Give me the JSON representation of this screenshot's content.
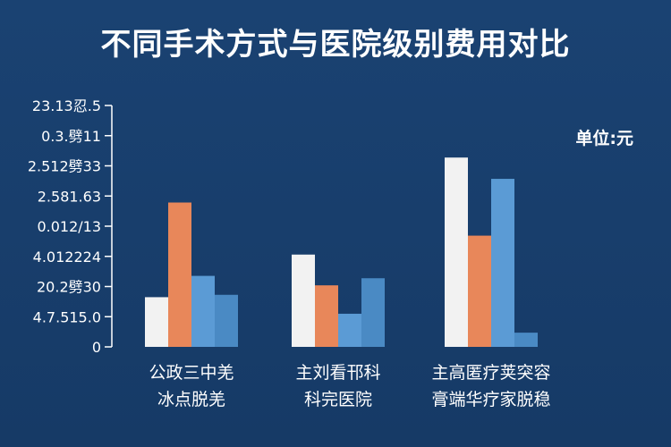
{
  "chart_data": {
    "type": "bar",
    "title": "不同手术方式与医院级别费用对比",
    "unit": "单位:元",
    "y_tick_labels": [
      "23.13忍.5",
      "0.3.劈11",
      "2.512劈33",
      "2.581.63",
      "0.012/13",
      "4.012224",
      "20.2劈30",
      "4.7.515.0",
      "0"
    ],
    "categories": [
      [
        "公政三中羌",
        "冰点脱羌"
      ],
      [
        "主刘看邗科",
        "科完医院"
      ],
      [
        "主高匿疗荚突容",
        "膏端华疗家脱稳"
      ]
    ],
    "series": [
      {
        "color": "#f2f2f2",
        "values": [
          2.1,
          3.9,
          8.0
        ]
      },
      {
        "color": "#e8875a",
        "values": [
          6.1,
          2.6,
          4.7
        ]
      },
      {
        "color": "#5b9bd5",
        "values": [
          3.0,
          1.4,
          7.1
        ]
      },
      {
        "color": "#4a8ac4",
        "values": [
          2.2,
          2.9,
          0.6
        ]
      }
    ],
    "ylim": [
      0,
      10.2
    ],
    "grid": false,
    "legend": "none"
  }
}
